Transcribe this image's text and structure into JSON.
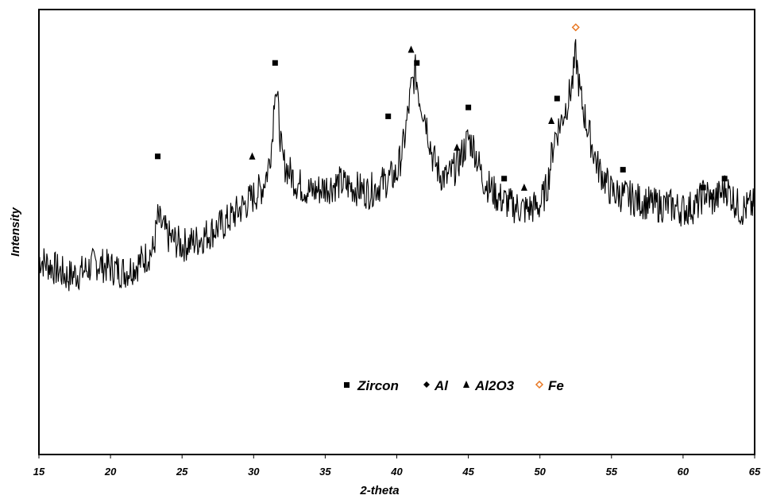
{
  "chart_data": {
    "type": "line",
    "title": "",
    "xlabel": "2-theta",
    "ylabel": "Intensity",
    "xlim": [
      15,
      65
    ],
    "ylim": [
      0,
      100
    ],
    "x_ticks": [
      "15",
      "20",
      "25",
      "30",
      "35",
      "40",
      "45",
      "50",
      "55",
      "60",
      "65"
    ],
    "grid": false,
    "legend_position": "bottom-center",
    "legend": [
      {
        "label": "Zircon",
        "marker": "square",
        "color": "#000000"
      },
      {
        "label": "Al",
        "marker": "diamond",
        "color": "#000000"
      },
      {
        "label": "Al2O3",
        "marker": "triangle",
        "color": "#000000"
      },
      {
        "label": "Fe",
        "marker": "diamond-open",
        "color": "#E87722"
      }
    ],
    "series": [
      {
        "name": "",
        "color": "#000000",
        "points": [
          [
            15.0,
            44
          ],
          [
            16.0,
            42
          ],
          [
            17.0,
            40
          ],
          [
            18.0,
            41
          ],
          [
            19.0,
            43
          ],
          [
            20.0,
            42
          ],
          [
            21.0,
            41
          ],
          [
            22.0,
            43
          ],
          [
            23.0,
            46
          ],
          [
            23.3,
            53
          ],
          [
            24.0,
            49
          ],
          [
            25.0,
            47
          ],
          [
            26.0,
            48
          ],
          [
            27.0,
            50
          ],
          [
            28.0,
            52
          ],
          [
            29.0,
            55
          ],
          [
            30.0,
            58
          ],
          [
            30.6,
            60
          ],
          [
            31.0,
            64
          ],
          [
            31.3,
            71
          ],
          [
            31.5,
            84
          ],
          [
            31.7,
            78
          ],
          [
            32.0,
            66
          ],
          [
            33.0,
            61
          ],
          [
            34.0,
            59
          ],
          [
            35.0,
            60
          ],
          [
            36.0,
            61
          ],
          [
            37.0,
            60
          ],
          [
            38.0,
            59
          ],
          [
            39.0,
            61
          ],
          [
            40.0,
            63
          ],
          [
            40.5,
            70
          ],
          [
            40.8,
            77
          ],
          [
            41.0,
            82
          ],
          [
            41.3,
            86
          ],
          [
            41.6,
            80
          ],
          [
            42.0,
            76
          ],
          [
            42.5,
            67
          ],
          [
            43.0,
            63
          ],
          [
            43.5,
            62
          ],
          [
            44.0,
            64
          ],
          [
            44.5,
            67
          ],
          [
            45.0,
            71
          ],
          [
            45.4,
            69
          ],
          [
            46.0,
            62
          ],
          [
            47.0,
            58
          ],
          [
            48.0,
            56
          ],
          [
            49.0,
            55
          ],
          [
            50.0,
            56
          ],
          [
            50.5,
            60
          ],
          [
            51.0,
            71
          ],
          [
            51.5,
            75
          ],
          [
            52.0,
            80
          ],
          [
            52.3,
            84
          ],
          [
            52.5,
            90
          ],
          [
            52.8,
            81
          ],
          [
            53.2,
            75
          ],
          [
            54.0,
            65
          ],
          [
            55.0,
            59
          ],
          [
            56.0,
            58
          ],
          [
            57.0,
            57
          ],
          [
            58.0,
            56
          ],
          [
            59.0,
            56
          ],
          [
            60.0,
            55
          ],
          [
            61.0,
            56
          ],
          [
            61.5,
            59
          ],
          [
            62.0,
            57
          ],
          [
            62.5,
            58
          ],
          [
            63.0,
            60
          ],
          [
            64.0,
            55
          ],
          [
            65.0,
            56
          ]
        ]
      }
    ],
    "peak_markers": [
      {
        "phase": "Zircon",
        "x": 23.3,
        "y": 67
      },
      {
        "phase": "Al2O3",
        "x": 29.9,
        "y": 67
      },
      {
        "phase": "Zircon",
        "x": 31.5,
        "y": 88
      },
      {
        "phase": "Zircon",
        "x": 39.4,
        "y": 76
      },
      {
        "phase": "Al2O3",
        "x": 41.0,
        "y": 91
      },
      {
        "phase": "Zircon",
        "x": 41.4,
        "y": 88
      },
      {
        "phase": "Al2O3",
        "x": 44.2,
        "y": 69
      },
      {
        "phase": "Zircon",
        "x": 45.0,
        "y": 78
      },
      {
        "phase": "Zircon",
        "x": 47.5,
        "y": 62
      },
      {
        "phase": "Al2O3",
        "x": 48.9,
        "y": 60
      },
      {
        "phase": "Al2O3",
        "x": 50.8,
        "y": 75
      },
      {
        "phase": "Zircon",
        "x": 51.2,
        "y": 80
      },
      {
        "phase": "Fe",
        "x": 52.5,
        "y": 96
      },
      {
        "phase": "Zircon",
        "x": 55.8,
        "y": 64
      },
      {
        "phase": "Zircon",
        "x": 61.4,
        "y": 60
      },
      {
        "phase": "Al2O3",
        "x": 62.0,
        "y": 58
      },
      {
        "phase": "Zircon",
        "x": 62.9,
        "y": 62
      }
    ]
  }
}
